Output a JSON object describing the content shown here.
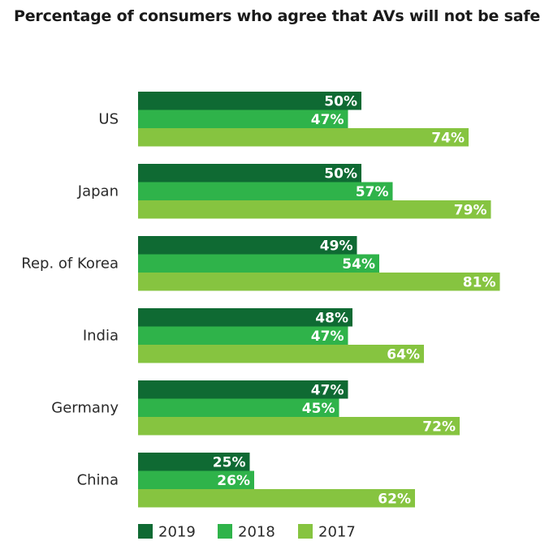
{
  "chart_data": {
    "type": "bar",
    "orientation": "horizontal",
    "title": "Percentage of consumers who agree that AVs will not be safe",
    "categories": [
      "US",
      "Japan",
      "Rep. of Korea",
      "India",
      "Germany",
      "China"
    ],
    "series": [
      {
        "name": "2019",
        "color": "#0f6a33",
        "values": [
          50,
          50,
          49,
          48,
          47,
          25
        ],
        "labels": [
          "50%",
          "50%",
          "49%",
          "48%",
          "47%",
          "25%"
        ]
      },
      {
        "name": "2018",
        "color": "#2fb34a",
        "values": [
          47,
          57,
          54,
          47,
          45,
          26
        ],
        "labels": [
          "47%",
          "57%",
          "54%",
          "47%",
          "45%",
          "26%"
        ]
      },
      {
        "name": "2017",
        "color": "#86c440",
        "values": [
          74,
          79,
          81,
          64,
          72,
          62
        ],
        "labels": [
          "74%",
          "79%",
          "81%",
          "64%",
          "72%",
          "62%"
        ]
      }
    ],
    "legend_position": "bottom",
    "grid": false
  }
}
